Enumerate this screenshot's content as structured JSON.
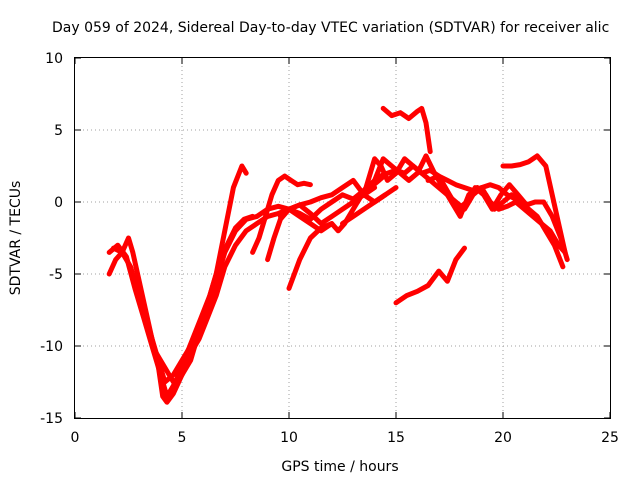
{
  "chart_data": {
    "type": "line",
    "title": "Day 059 of 2024, Sidereal Day-to-day VTEC variation (SDTVAR) for receiver alic",
    "xlabel": "GPS time / hours",
    "ylabel": "SDTVAR / TECUs",
    "xlim": [
      0,
      25
    ],
    "ylim": [
      -15,
      10
    ],
    "xticks": [
      0,
      5,
      10,
      15,
      20,
      25
    ],
    "yticks": [
      -15,
      -10,
      -5,
      0,
      5,
      10
    ],
    "grid": true,
    "legend": "none",
    "series_color": "#ff0000",
    "series": [
      {
        "x": [
          1.6,
          1.9,
          2.2,
          2.5,
          2.7,
          3.0,
          3.3,
          3.6,
          3.9,
          4.1,
          4.3,
          4.6,
          5.0,
          5.4,
          5.8,
          6.2,
          6.6,
          7.0,
          7.4,
          7.8,
          8.0
        ],
        "y": [
          -5.0,
          -4.0,
          -3.5,
          -2.5,
          -3.5,
          -5.5,
          -7.5,
          -9.5,
          -11.5,
          -13.5,
          -13.9,
          -13.3,
          -12.0,
          -11.0,
          -9.0,
          -7.0,
          -5.0,
          -2.0,
          1.0,
          2.5,
          2.0
        ]
      },
      {
        "x": [
          1.6,
          2.0,
          2.4,
          2.8,
          3.2,
          3.6,
          4.0,
          4.3,
          4.7,
          5.1,
          5.5,
          5.9,
          6.3,
          6.7,
          7.1,
          7.5,
          7.9,
          8.3
        ],
        "y": [
          -3.5,
          -3.0,
          -3.8,
          -6.0,
          -8.0,
          -10.0,
          -12.0,
          -13.5,
          -12.5,
          -11.0,
          -9.5,
          -8.0,
          -6.5,
          -4.5,
          -3.0,
          -1.8,
          -1.2,
          -1.0
        ]
      },
      {
        "x": [
          1.8,
          2.2,
          2.6,
          3.0,
          3.4,
          3.8,
          4.2,
          4.6,
          5.0,
          5.4,
          5.8,
          6.2,
          6.6,
          7.0,
          7.5,
          8.0,
          8.5,
          9.0,
          9.5,
          10.0,
          10.5,
          11.0,
          11.5,
          12.0
        ],
        "y": [
          -3.2,
          -3.5,
          -4.5,
          -6.5,
          -8.5,
          -10.5,
          -12.5,
          -12.0,
          -11.0,
          -10.0,
          -9.0,
          -7.5,
          -5.5,
          -3.5,
          -2.0,
          -1.2,
          -1.0,
          -0.5,
          -0.3,
          -0.5,
          -1.0,
          -1.5,
          -2.0,
          -1.5
        ]
      },
      {
        "x": [
          3.8,
          4.2,
          4.6,
          5.0,
          5.4,
          5.8,
          6.2,
          6.6,
          7.0,
          7.5,
          8.0,
          8.5,
          9.0,
          9.5,
          10.0,
          10.5,
          11.0,
          11.5,
          12.0,
          12.5,
          13.0,
          13.5,
          14.0
        ],
        "y": [
          -10.5,
          -11.5,
          -12.5,
          -12.0,
          -10.5,
          -9.5,
          -8.0,
          -6.5,
          -4.5,
          -3.0,
          -2.0,
          -1.5,
          -1.0,
          -0.8,
          -0.5,
          -0.2,
          -0.8,
          -1.5,
          -1.0,
          -0.5,
          0.0,
          0.5,
          1.0
        ]
      },
      {
        "x": [
          8.3,
          8.6,
          8.9,
          9.2,
          9.5,
          9.8,
          10.1,
          10.4,
          10.7,
          11.0
        ],
        "y": [
          -3.5,
          -2.5,
          -1.0,
          0.5,
          1.5,
          1.8,
          1.5,
          1.2,
          1.3,
          1.2
        ]
      },
      {
        "x": [
          9.0,
          9.3,
          9.6,
          10.0,
          10.5,
          11.0,
          11.5,
          12.0,
          12.5,
          13.0,
          13.5,
          14.0,
          14.5
        ],
        "y": [
          -4.0,
          -2.5,
          -1.2,
          -0.5,
          -0.8,
          -1.2,
          -0.5,
          0.0,
          0.5,
          0.2,
          0.8,
          1.5,
          2.0
        ]
      },
      {
        "x": [
          9.6,
          10.0,
          10.5,
          11.0,
          11.5,
          12.0,
          12.5,
          13.0,
          13.5,
          14.0,
          14.5
        ],
        "y": [
          -1.0,
          -0.5,
          -0.2,
          0.0,
          0.3,
          0.5,
          1.0,
          1.5,
          0.5,
          0.0,
          0.5
        ]
      },
      {
        "x": [
          10.0,
          10.5,
          11.0,
          11.5,
          12.0,
          12.3,
          12.6,
          13.0,
          13.4,
          13.8,
          14.2,
          14.6,
          15.0,
          15.4,
          15.8,
          16.2,
          16.6,
          17.0,
          17.4,
          17.8,
          18.2,
          18.6,
          19.0,
          19.4,
          19.8,
          20.2,
          20.6
        ],
        "y": [
          -6.0,
          -4.0,
          -2.5,
          -1.8,
          -1.5,
          -2.0,
          -1.5,
          -0.5,
          0.5,
          1.0,
          1.5,
          2.0,
          2.2,
          2.0,
          2.5,
          2.0,
          2.2,
          1.8,
          1.5,
          1.2,
          1.0,
          0.8,
          1.0,
          1.2,
          1.0,
          0.5,
          0.2
        ]
      },
      {
        "x": [
          12.5,
          13.0,
          13.5,
          14.0,
          14.5,
          15.0
        ],
        "y": [
          -1.5,
          -1.0,
          -0.5,
          0.0,
          0.5,
          1.0
        ]
      },
      {
        "x": [
          13.2,
          13.6,
          14.0,
          14.3,
          14.6,
          15.0,
          15.4,
          15.8,
          16.2,
          16.6,
          17.0,
          17.4,
          17.8,
          18.2,
          18.6,
          19.0,
          19.4,
          19.8,
          20.2,
          20.6,
          21.0,
          21.4,
          21.8,
          22.2,
          22.6,
          22.9
        ],
        "y": [
          0.0,
          1.0,
          3.0,
          2.5,
          1.5,
          2.0,
          3.0,
          2.5,
          2.0,
          1.5,
          1.0,
          0.5,
          0.0,
          -0.5,
          0.5,
          1.0,
          0.0,
          -0.5,
          -0.3,
          0.0,
          -0.5,
          -1.0,
          -1.5,
          -2.0,
          -3.0,
          -3.5
        ]
      },
      {
        "x": [
          14.0,
          14.4,
          14.8,
          15.2,
          15.6,
          16.0,
          16.4,
          16.8,
          17.2,
          17.6,
          18.0,
          18.4,
          18.8,
          19.2,
          19.6,
          20.0,
          20.4,
          20.8,
          21.2,
          21.6,
          22.0,
          22.4,
          22.8
        ],
        "y": [
          1.5,
          3.0,
          2.5,
          2.0,
          1.5,
          2.0,
          3.2,
          2.0,
          1.0,
          0.0,
          -1.0,
          0.5,
          1.0,
          0.5,
          -0.5,
          0.0,
          0.5,
          0.0,
          -0.5,
          -1.0,
          -2.0,
          -3.0,
          -4.5
        ]
      },
      {
        "x": [
          14.4,
          14.8,
          15.2,
          15.6,
          16.0,
          16.2,
          16.4,
          16.6
        ],
        "y": [
          6.5,
          6.0,
          6.2,
          5.8,
          6.3,
          6.5,
          5.5,
          3.5
        ]
      },
      {
        "x": [
          15.0,
          15.5,
          16.0,
          16.5,
          17.0,
          17.4,
          17.8,
          18.2
        ],
        "y": [
          -7.0,
          -6.5,
          -6.2,
          -5.8,
          -4.8,
          -5.5,
          -4.0,
          -3.2
        ]
      },
      {
        "x": [
          16.5,
          17.0,
          17.5,
          17.9,
          18.3,
          18.7,
          19.1,
          19.5,
          19.9,
          20.3,
          20.7,
          21.1,
          21.5,
          21.9,
          22.3,
          22.7,
          23.0
        ],
        "y": [
          1.5,
          1.8,
          0.5,
          -0.5,
          0.0,
          1.0,
          0.5,
          -0.5,
          0.5,
          1.2,
          0.5,
          -0.2,
          0.0,
          0.0,
          -1.0,
          -2.5,
          -4.0
        ]
      },
      {
        "x": [
          20.0,
          20.4,
          20.8,
          21.2,
          21.6,
          22.0,
          22.3,
          22.6,
          22.9
        ],
        "y": [
          2.5,
          2.5,
          2.6,
          2.8,
          3.2,
          2.5,
          0.5,
          -1.5,
          -3.5
        ]
      }
    ]
  }
}
